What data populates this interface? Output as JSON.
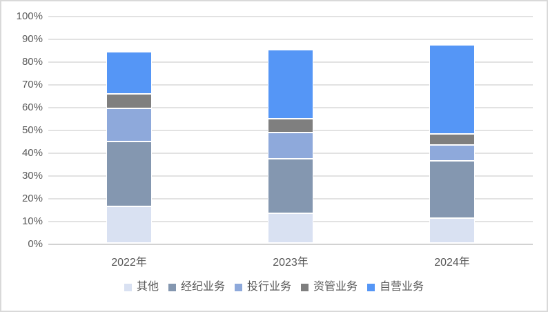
{
  "chart_data": {
    "type": "bar",
    "stacked": true,
    "title": "",
    "xlabel": "",
    "ylabel": "",
    "categories": [
      "2022年",
      "2023年",
      "2024年"
    ],
    "series": [
      {
        "name": "其他",
        "color": "#D9E1F2",
        "values": [
          16.0,
          13.0,
          11.0
        ]
      },
      {
        "name": "经纪业务",
        "color": "#8497B0",
        "values": [
          28.5,
          24.0,
          25.0
        ]
      },
      {
        "name": "投行业务",
        "color": "#8EA9DB",
        "values": [
          14.5,
          11.5,
          7.0
        ]
      },
      {
        "name": "资管业务",
        "color": "#7F7F7F",
        "values": [
          6.5,
          6.0,
          5.0
        ]
      },
      {
        "name": "自营业务",
        "color": "#5596F6",
        "values": [
          18.5,
          30.5,
          39.0
        ]
      }
    ],
    "stack_totals_percent": [
      84,
      85,
      87
    ],
    "ylim": [
      0,
      100
    ],
    "ytick_step": 10,
    "ytick_labels": [
      "0%",
      "10%",
      "20%",
      "30%",
      "40%",
      "50%",
      "60%",
      "70%",
      "80%",
      "90%",
      "100%"
    ],
    "grid": true,
    "legend_position": "bottom",
    "legend_labels": [
      "其他",
      "经纪业务",
      "投行业务",
      "资管业务",
      "自营业务"
    ]
  },
  "style": {
    "background": "#FFFFFF",
    "frame_border_color": "#D9D9D9",
    "gridline_color": "#E2E2E2",
    "zero_axis_color": "#D2D2D2",
    "text_color": "#595959",
    "segment_outline_color": "#FFFFFF"
  }
}
